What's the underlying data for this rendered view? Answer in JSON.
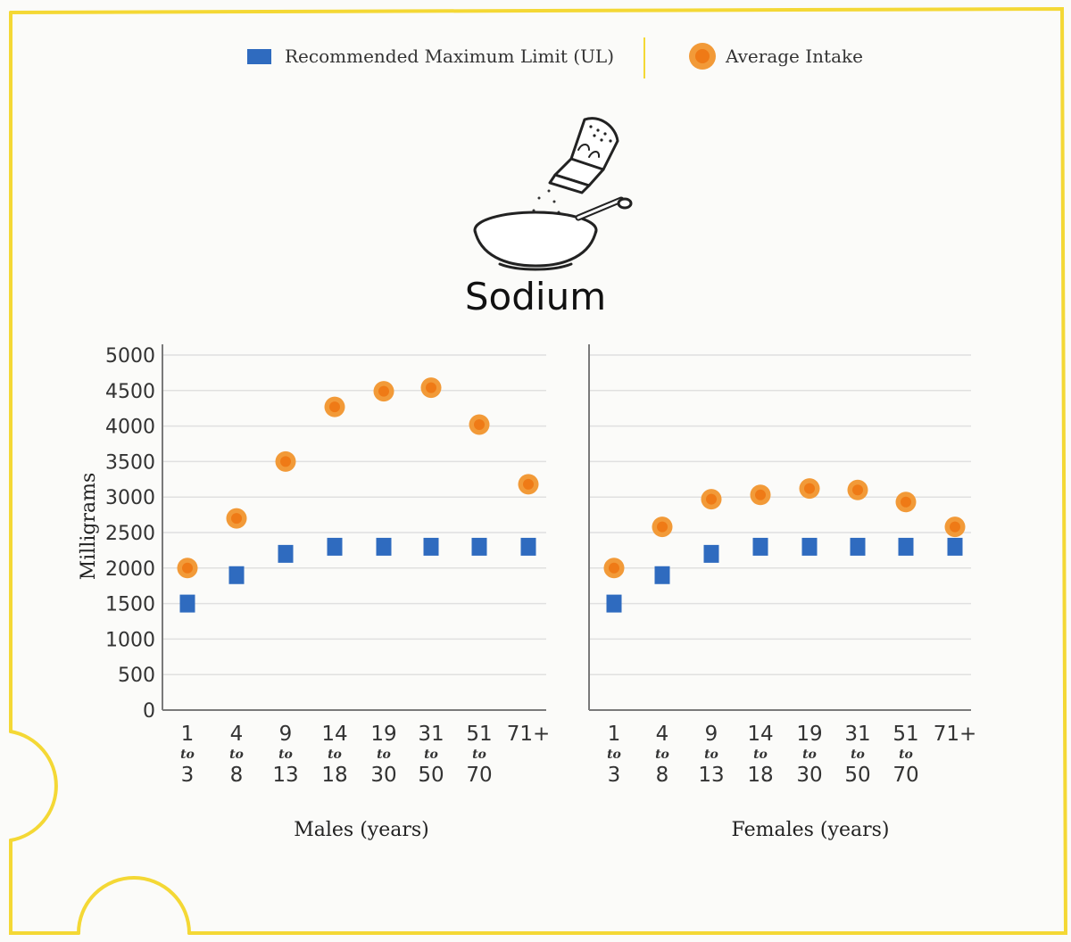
{
  "colors": {
    "ul": "#2f6bbf",
    "intake_ring": "#f29a38",
    "intake_inner": "#ef7a16",
    "frame": "#f4d835",
    "grid": "#e0e0e0",
    "axis": "#7a7a7a"
  },
  "legend": {
    "ul_label": "Recommended Maximum Limit (UL)",
    "intake_label": "Average Intake",
    "ul_icon": "blue-square-marker",
    "intake_icon": "orange-circle-marker"
  },
  "title": "Sodium",
  "illustration": "salt-shaker-and-bowl",
  "chart_data": [
    {
      "type": "scatter",
      "panel": "males",
      "title": "Sodium",
      "xlabel": "Males (years)",
      "ylabel": "Milligrams",
      "ylim": [
        0,
        5000
      ],
      "yticks": [
        0,
        500,
        1000,
        1500,
        2000,
        2500,
        3000,
        3500,
        4000,
        4500,
        5000
      ],
      "grid": true,
      "categories": [
        {
          "from": "1",
          "to_word": "to",
          "to": "3"
        },
        {
          "from": "4",
          "to_word": "to",
          "to": "8"
        },
        {
          "from": "9",
          "to_word": "to",
          "to": "13"
        },
        {
          "from": "14",
          "to_word": "to",
          "to": "18"
        },
        {
          "from": "19",
          "to_word": "to",
          "to": "30"
        },
        {
          "from": "31",
          "to_word": "to",
          "to": "50"
        },
        {
          "from": "51",
          "to_word": "to",
          "to": "70"
        },
        {
          "from": "71+",
          "to_word": "",
          "to": ""
        }
      ],
      "series": [
        {
          "name": "Recommended Maximum Limit (UL)",
          "values": [
            1500,
            1900,
            2200,
            2300,
            2300,
            2300,
            2300,
            2300
          ]
        },
        {
          "name": "Average Intake",
          "values": [
            2000,
            2700,
            3500,
            4270,
            4490,
            4540,
            4020,
            3180
          ]
        }
      ]
    },
    {
      "type": "scatter",
      "panel": "females",
      "xlabel": "Females (years)",
      "ylabel": "",
      "ylim": [
        0,
        5000
      ],
      "grid": true,
      "categories": [
        {
          "from": "1",
          "to_word": "to",
          "to": "3"
        },
        {
          "from": "4",
          "to_word": "to",
          "to": "8"
        },
        {
          "from": "9",
          "to_word": "to",
          "to": "13"
        },
        {
          "from": "14",
          "to_word": "to",
          "to": "18"
        },
        {
          "from": "19",
          "to_word": "to",
          "to": "30"
        },
        {
          "from": "31",
          "to_word": "to",
          "to": "50"
        },
        {
          "from": "51",
          "to_word": "to",
          "to": "70"
        },
        {
          "from": "71+",
          "to_word": "",
          "to": ""
        }
      ],
      "series": [
        {
          "name": "Recommended Maximum Limit (UL)",
          "values": [
            1500,
            1900,
            2200,
            2300,
            2300,
            2300,
            2300,
            2300
          ]
        },
        {
          "name": "Average Intake",
          "values": [
            2000,
            2580,
            2970,
            3030,
            3120,
            3100,
            2930,
            2580
          ]
        }
      ]
    }
  ]
}
